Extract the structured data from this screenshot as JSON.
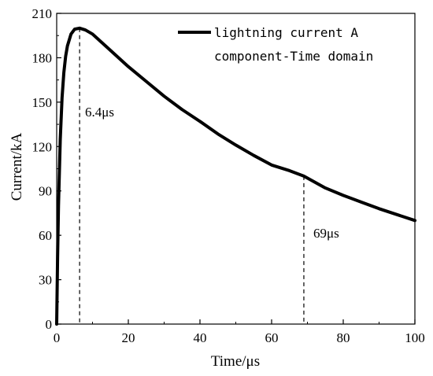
{
  "chart_data": {
    "type": "line",
    "title": "",
    "xlabel": "Time/μs",
    "ylabel": "Current/kA",
    "xlim": [
      0,
      100
    ],
    "ylim": [
      0,
      210
    ],
    "x_ticks": [
      "0",
      "20",
      "40",
      "60",
      "80",
      "100"
    ],
    "y_ticks": [
      "0",
      "30",
      "60",
      "90",
      "120",
      "150",
      "180",
      "210"
    ],
    "grid": false,
    "legend_position": "top-right",
    "series": [
      {
        "name": "lightning current A component-Time domain",
        "color": "#000000",
        "x": [
          0,
          0.25,
          0.5,
          1,
          1.5,
          2,
          2.5,
          3,
          4,
          5,
          6.4,
          8,
          10,
          15,
          20,
          25,
          30,
          35,
          40,
          45,
          50,
          55,
          60,
          65,
          69,
          75,
          80,
          85,
          90,
          95,
          100
        ],
        "y": [
          0,
          45,
          80,
          125,
          153,
          170,
          181,
          188,
          196,
          199.3,
          200,
          198.8,
          196,
          185,
          174,
          164,
          154,
          145,
          137,
          128.5,
          121,
          114,
          107.5,
          103.7,
          100,
          92,
          87,
          82.5,
          78,
          74,
          70
        ]
      }
    ],
    "legend_lines": [
      "lightning current A",
      "component-Time domain"
    ],
    "annotations": [
      {
        "label": "6.4μs",
        "x": 6.4,
        "y": 200
      },
      {
        "label": "69μs",
        "x": 69,
        "y": 100
      }
    ]
  }
}
